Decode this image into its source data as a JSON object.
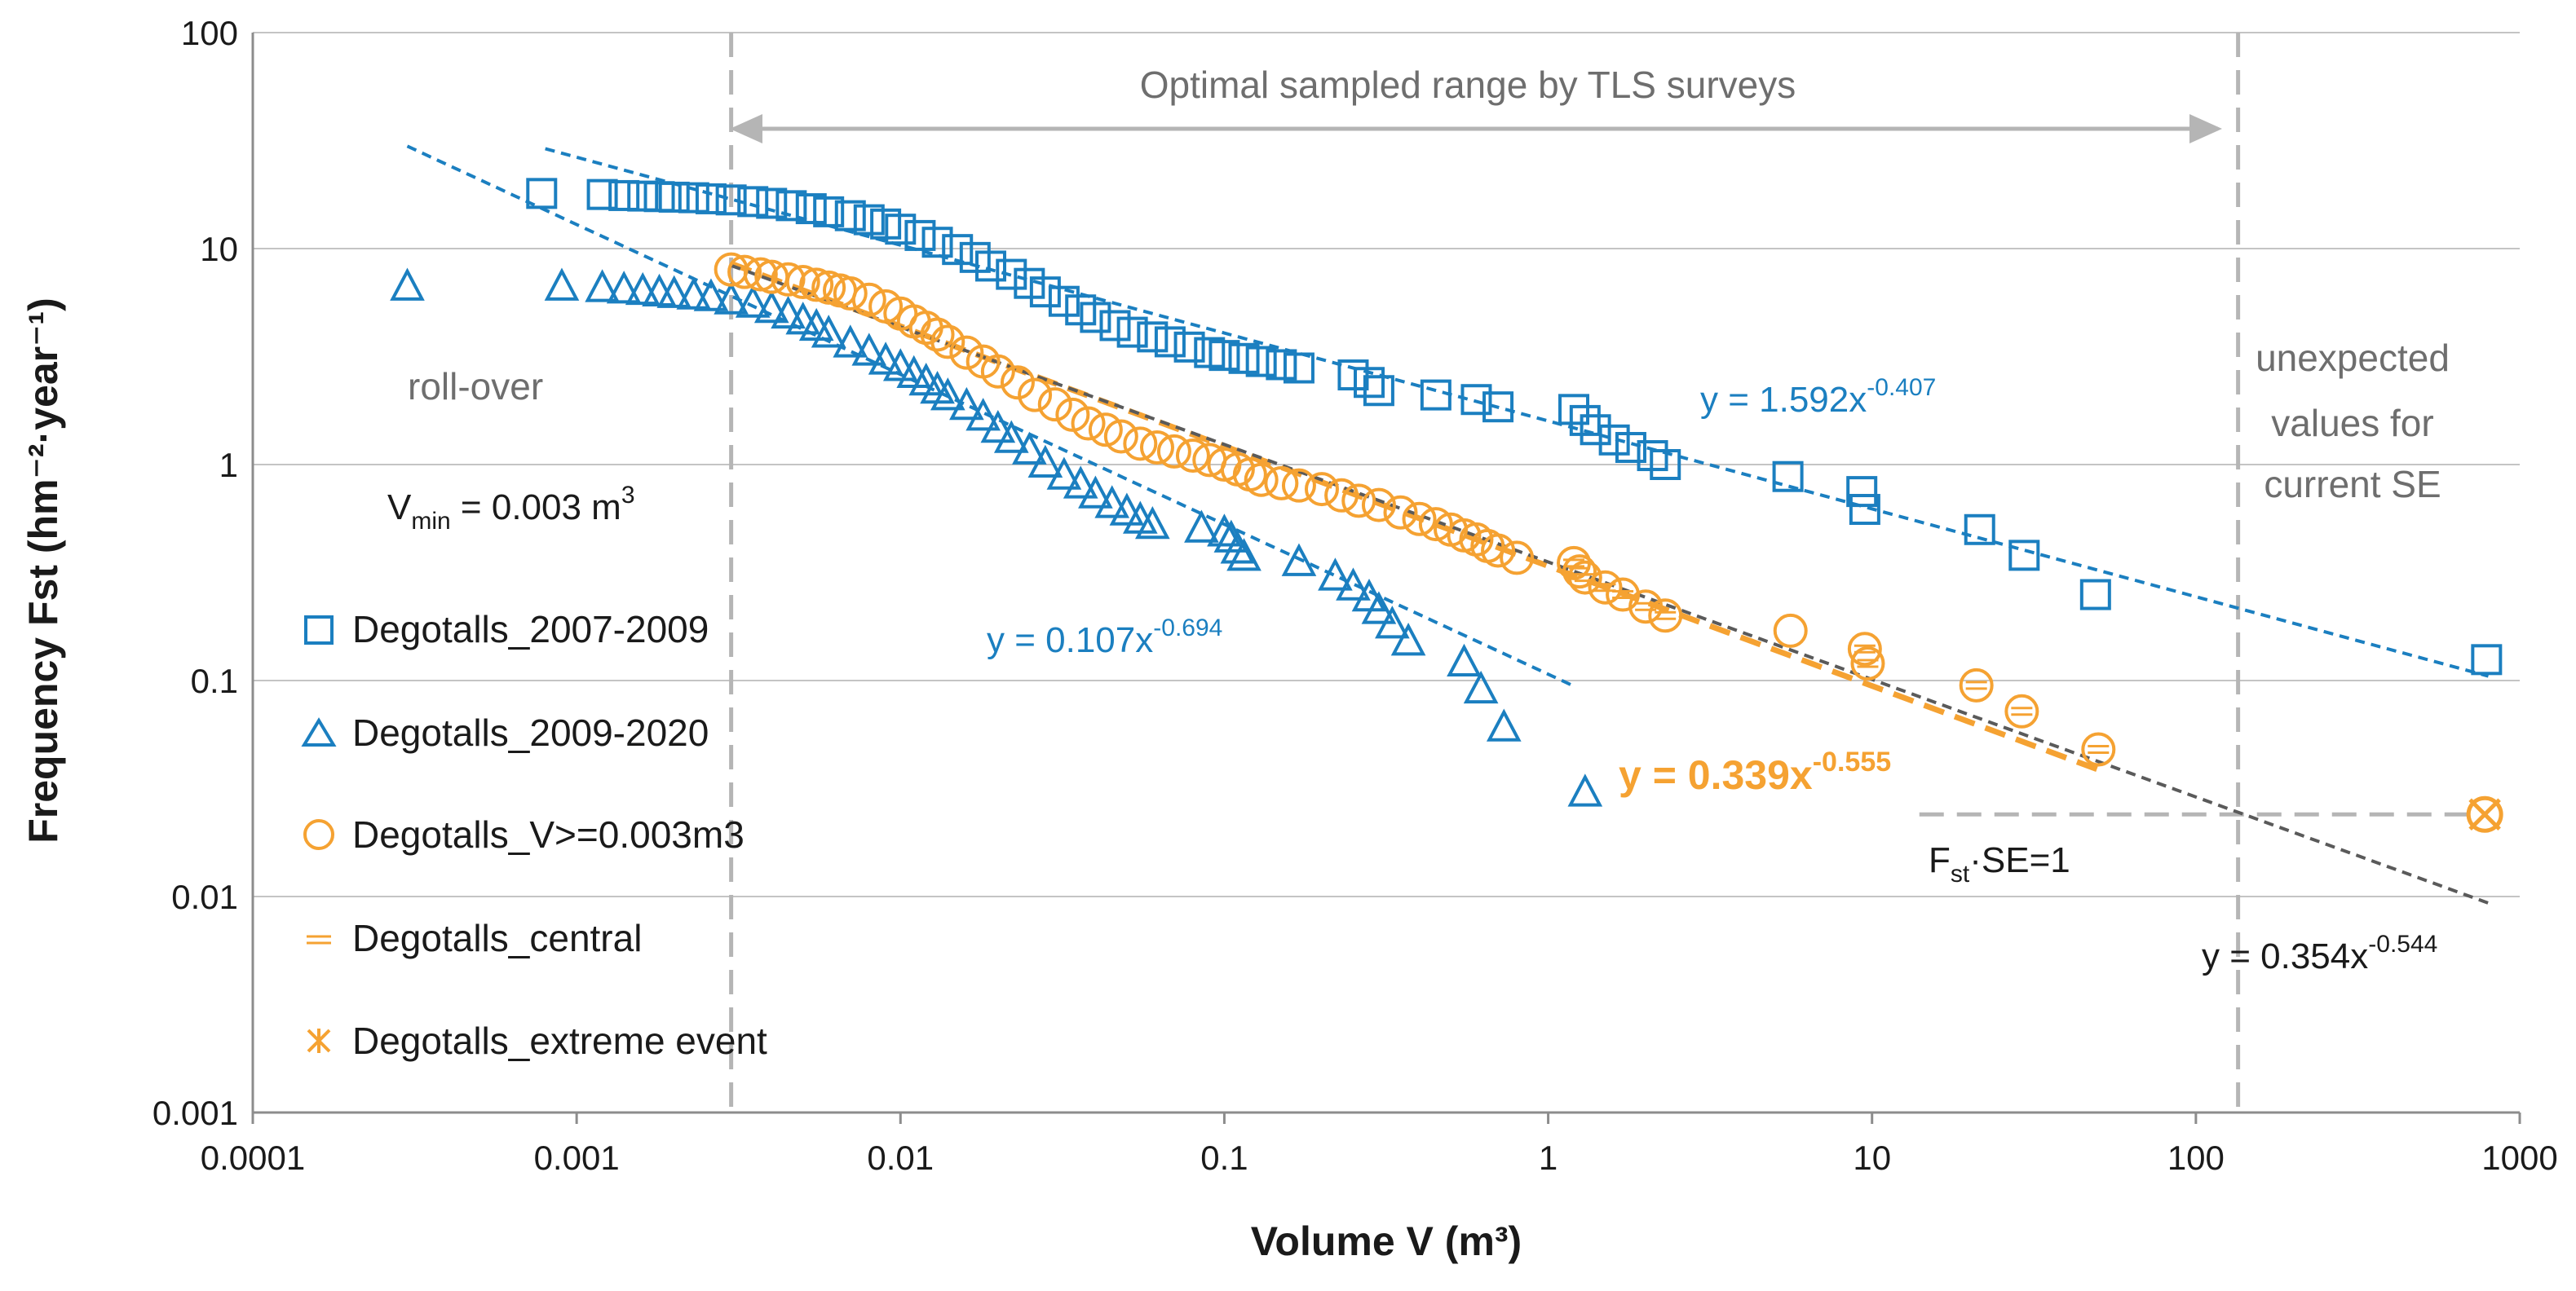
{
  "chart_data": {
    "type": "scatter",
    "xscale": "log",
    "yscale": "log",
    "xlim": [
      0.0001,
      1000
    ],
    "ylim": [
      0.001,
      100
    ],
    "xlabel": "Volume V (m³)",
    "ylabel": "Frequency Fst (hm⁻²·year⁻¹)",
    "xticks": [
      "0.0001",
      "0.001",
      "0.01",
      "0.1",
      "1",
      "10",
      "100",
      "1000"
    ],
    "yticks": [
      "0.001",
      "0.01",
      "0.1",
      "1",
      "10",
      "100"
    ],
    "legend_position": "left",
    "colors": {
      "blue": "#1b7fc0",
      "orange": "#f5a232",
      "gray": "#5a5a5a",
      "guide": "#b5b5b5"
    },
    "series": [
      {
        "name": "Degotalls_2007-2009",
        "marker": "square",
        "color": "#1b7fc0",
        "x": [
          0.00078,
          0.0012,
          0.0014,
          0.0016,
          0.0018,
          0.002,
          0.0023,
          0.0026,
          0.003,
          0.0035,
          0.004,
          0.0046,
          0.0053,
          0.006,
          0.007,
          0.008,
          0.009,
          0.01,
          0.0115,
          0.013,
          0.015,
          0.017,
          0.019,
          0.022,
          0.025,
          0.028,
          0.032,
          0.036,
          0.04,
          0.046,
          0.052,
          0.06,
          0.068,
          0.078,
          0.09,
          0.1,
          0.115,
          0.13,
          0.15,
          0.17,
          0.25,
          0.28,
          0.3,
          0.45,
          0.6,
          0.7,
          1.2,
          1.3,
          1.4,
          1.6,
          1.8,
          2.1,
          2.3,
          5.5,
          9.3,
          9.5,
          21.5,
          29.5,
          49,
          790
        ],
        "y": [
          18,
          17.8,
          17.6,
          17.5,
          17.4,
          17.3,
          17.2,
          17,
          16.8,
          16.5,
          16.2,
          15.8,
          15.3,
          14.8,
          14.2,
          13.6,
          13,
          12.3,
          11.5,
          10.7,
          9.9,
          9.1,
          8.3,
          7.6,
          6.9,
          6.3,
          5.7,
          5.2,
          4.8,
          4.4,
          4.1,
          3.9,
          3.7,
          3.5,
          3.3,
          3.2,
          3.1,
          3,
          2.9,
          2.8,
          2.6,
          2.4,
          2.2,
          2.1,
          2,
          1.85,
          1.8,
          1.6,
          1.45,
          1.3,
          1.2,
          1.1,
          1.0,
          0.88,
          0.75,
          0.62,
          0.5,
          0.38,
          0.25,
          0.125
        ]
      },
      {
        "name": "Degotalls_2009-2020",
        "marker": "triangle",
        "color": "#1b7fc0",
        "x": [
          0.0003,
          0.0009,
          0.0012,
          0.0014,
          0.0016,
          0.0018,
          0.002,
          0.0023,
          0.0026,
          0.003,
          0.0035,
          0.004,
          0.0045,
          0.005,
          0.0055,
          0.006,
          0.007,
          0.008,
          0.009,
          0.01,
          0.011,
          0.012,
          0.013,
          0.014,
          0.016,
          0.018,
          0.02,
          0.022,
          0.025,
          0.028,
          0.032,
          0.036,
          0.04,
          0.045,
          0.05,
          0.055,
          0.06,
          0.085,
          0.1,
          0.105,
          0.11,
          0.115,
          0.17,
          0.22,
          0.25,
          0.28,
          0.3,
          0.33,
          0.37,
          0.55,
          0.62,
          0.73,
          1.3
        ],
        "y": [
          6.6,
          6.6,
          6.5,
          6.4,
          6.3,
          6.2,
          6.1,
          6,
          5.9,
          5.7,
          5.5,
          5.2,
          4.9,
          4.6,
          4.3,
          4,
          3.6,
          3.3,
          3,
          2.8,
          2.6,
          2.4,
          2.2,
          2.05,
          1.85,
          1.65,
          1.45,
          1.3,
          1.15,
          1.0,
          0.88,
          0.8,
          0.72,
          0.65,
          0.6,
          0.55,
          0.52,
          0.5,
          0.48,
          0.45,
          0.4,
          0.37,
          0.35,
          0.3,
          0.27,
          0.24,
          0.21,
          0.18,
          0.15,
          0.12,
          0.09,
          0.06,
          0.03
        ]
      },
      {
        "name": "Degotalls_V>=0.003m3",
        "marker": "circle",
        "color": "#f5a232",
        "x": [
          0.003,
          0.0033,
          0.0037,
          0.004,
          0.0045,
          0.005,
          0.0055,
          0.006,
          0.0065,
          0.007,
          0.008,
          0.009,
          0.01,
          0.011,
          0.012,
          0.013,
          0.014,
          0.016,
          0.018,
          0.02,
          0.023,
          0.026,
          0.03,
          0.034,
          0.038,
          0.043,
          0.048,
          0.055,
          0.062,
          0.07,
          0.08,
          0.09,
          0.1,
          0.11,
          0.12,
          0.13,
          0.15,
          0.17,
          0.2,
          0.23,
          0.26,
          0.3,
          0.35,
          0.4,
          0.45,
          0.5,
          0.55,
          0.6,
          0.65,
          0.7,
          0.8,
          1.2,
          1.25,
          1.3,
          1.5,
          1.7,
          2.0,
          2.3,
          5.6,
          9.5,
          9.7,
          21,
          29,
          50
        ],
        "y": [
          8,
          7.8,
          7.6,
          7.4,
          7.2,
          7,
          6.8,
          6.6,
          6.4,
          6.2,
          5.8,
          5.4,
          5,
          4.6,
          4.3,
          4,
          3.7,
          3.3,
          3,
          2.7,
          2.4,
          2.1,
          1.9,
          1.7,
          1.55,
          1.45,
          1.35,
          1.25,
          1.2,
          1.15,
          1.1,
          1.05,
          1.0,
          0.95,
          0.9,
          0.85,
          0.82,
          0.8,
          0.77,
          0.72,
          0.68,
          0.65,
          0.6,
          0.56,
          0.53,
          0.5,
          0.47,
          0.45,
          0.42,
          0.4,
          0.37,
          0.35,
          0.32,
          0.3,
          0.27,
          0.25,
          0.22,
          0.2,
          0.17,
          0.14,
          0.12,
          0.095,
          0.072,
          0.048
        ]
      },
      {
        "name": "Degotalls_central",
        "marker": "line",
        "color": "#f5a232",
        "x": [
          1.2,
          1.25,
          1.3,
          1.5,
          1.7,
          2.0,
          2.3,
          9.5,
          9.7,
          21,
          29,
          50
        ],
        "y": [
          0.35,
          0.32,
          0.3,
          0.27,
          0.25,
          0.22,
          0.2,
          0.14,
          0.12,
          0.095,
          0.072,
          0.048
        ]
      },
      {
        "name": "Degotalls_extreme event",
        "marker": "star",
        "color": "#f5a232",
        "x": [
          780
        ],
        "y": [
          0.024
        ]
      }
    ],
    "trendlines": [
      {
        "label": "y = 1.592x",
        "exponent": "-0.407",
        "color": "#1b7fc0",
        "dash": "short",
        "x_range": [
          0.0008,
          800
        ]
      },
      {
        "label": "y = 0.107x",
        "exponent": "-0.694",
        "color": "#1b7fc0",
        "dash": "short",
        "x_range": [
          0.0003,
          1.2
        ]
      },
      {
        "label": "y = 0.339x",
        "exponent": "-0.555",
        "color": "#f5a232",
        "dash": "long",
        "bold": true,
        "x_range": [
          0.003,
          50
        ]
      },
      {
        "label": "y = 0.354x",
        "exponent": "-0.544",
        "color": "#5a5a5a",
        "dash": "short",
        "x_range": [
          0.003,
          800
        ]
      }
    ],
    "annotations": {
      "sampled_range": "Optimal sampled range by TLS surveys",
      "rollover": "roll-over",
      "vmin_prefix": "V",
      "vmin_sub": "min",
      "vmin_suffix": " = 0.003 m",
      "vmin_sup": "3",
      "unexpected_1": "unexpected",
      "unexpected_2": "values for",
      "unexpected_3": "current SE",
      "fse_prefix": "F",
      "fse_sub": "st",
      "fse_suffix": "·SE=1"
    },
    "guides": {
      "vertical_x": [
        0.003,
        135
      ],
      "fse_line_y": 0.024,
      "fse_line_x": [
        14,
        780
      ]
    }
  }
}
